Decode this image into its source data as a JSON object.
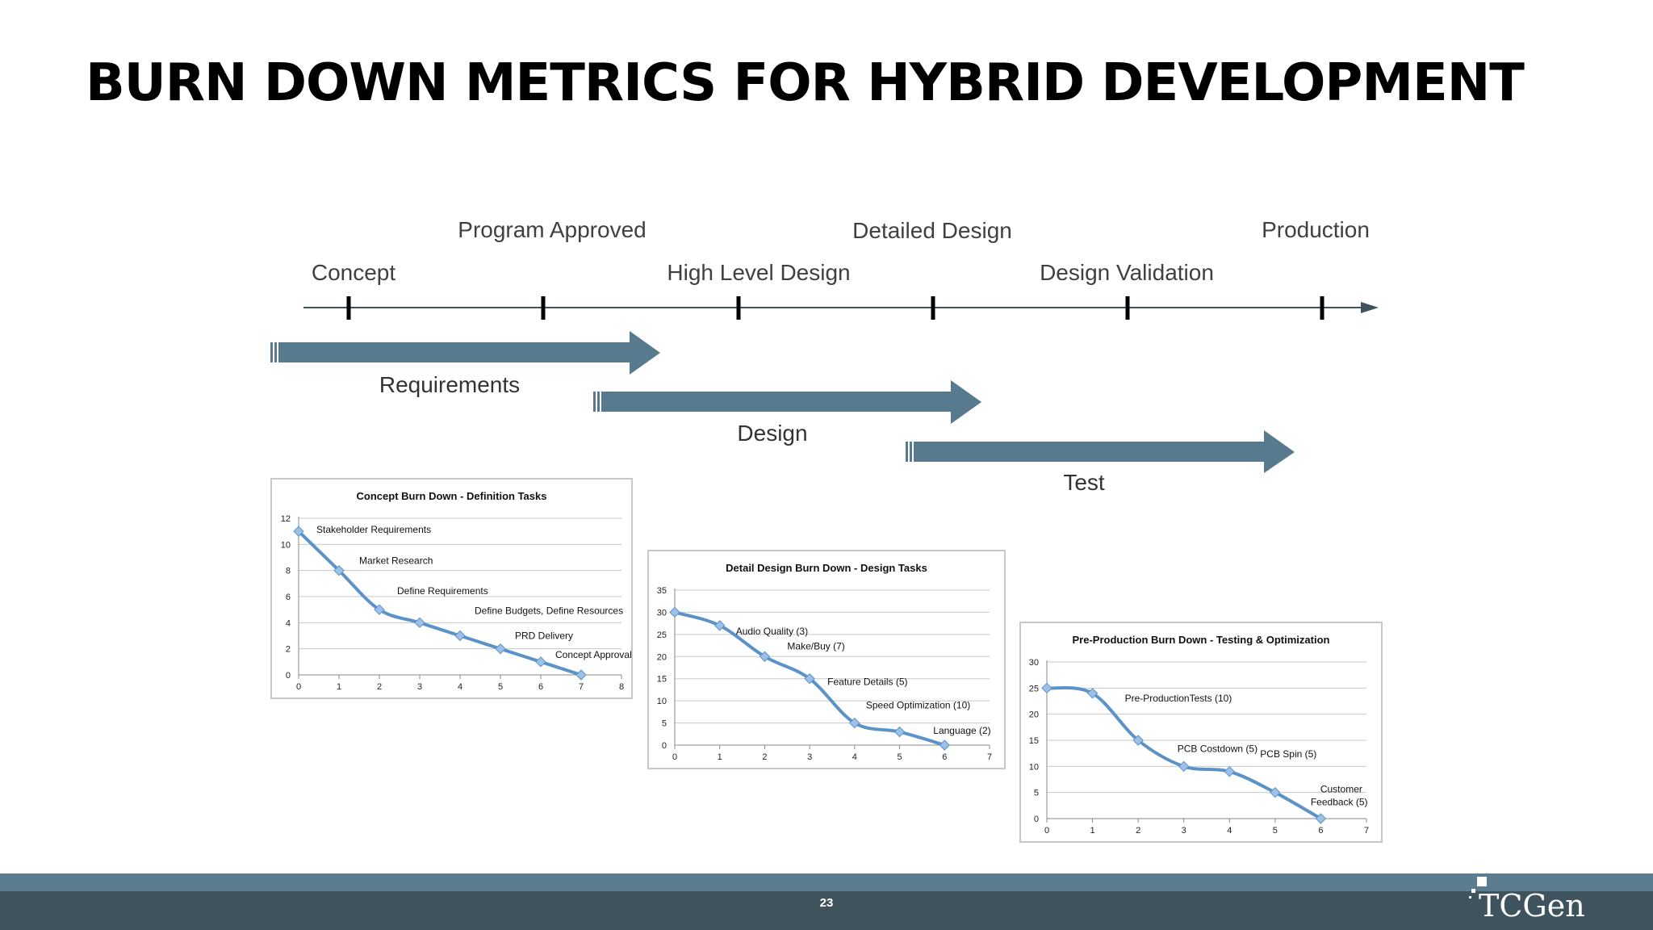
{
  "slide": {
    "title": "BURN DOWN METRICS FOR HYBRID DEVELOPMENT",
    "page_number": "23",
    "logo_text": "TCGen"
  },
  "timeline": {
    "milestones": [
      "Concept",
      "Program Approved",
      "High Level Design",
      "Detailed Design",
      "Design Validation",
      "Production"
    ],
    "phases": [
      "Requirements",
      "Design",
      "Test"
    ]
  },
  "colors": {
    "arrow": "#587a8e",
    "line": "#5b93c9",
    "marker": "#9cc0e6",
    "footer_dark": "#3f535f",
    "footer_light": "#5c7d90"
  },
  "chart_data": [
    {
      "type": "line",
      "title": "Concept Burn Down - Definition Tasks",
      "x": [
        0,
        1,
        2,
        3,
        4,
        5,
        6,
        7
      ],
      "series": [
        {
          "values": [
            11,
            8,
            5,
            4,
            3,
            2,
            1,
            0
          ]
        }
      ],
      "xlim": [
        0,
        8
      ],
      "ylim": [
        0,
        12
      ],
      "xticks": [
        0,
        1,
        2,
        3,
        4,
        5,
        6,
        7,
        8
      ],
      "yticks": [
        0,
        2,
        4,
        6,
        8,
        10,
        12
      ],
      "grid": true,
      "annotations": [
        {
          "text": "Stakeholder Requirements",
          "x": 0,
          "y": 11
        },
        {
          "text": "Market Research",
          "x": 1,
          "y": 8
        },
        {
          "text": "Define Requirements",
          "x": 2,
          "y": 5
        },
        {
          "text": "Define Budgets, Define Resources",
          "x": 3,
          "y": 4
        },
        {
          "text": "PRD Delivery",
          "x": 5,
          "y": 2
        },
        {
          "text": "Concept Approval",
          "x": 6,
          "y": 1
        }
      ]
    },
    {
      "type": "line",
      "title": "Detail Design Burn Down - Design Tasks",
      "x": [
        0,
        1,
        2,
        3,
        4,
        5,
        6
      ],
      "series": [
        {
          "values": [
            30,
            27,
            20,
            15,
            5,
            3,
            0
          ]
        }
      ],
      "xlim": [
        0,
        7
      ],
      "ylim": [
        0,
        35
      ],
      "xticks": [
        0,
        1,
        2,
        3,
        4,
        5,
        6,
        7
      ],
      "yticks": [
        0,
        5,
        10,
        15,
        20,
        25,
        30,
        35
      ],
      "grid": true,
      "annotations": [
        {
          "text": "Audio Quality (3)",
          "x": 1,
          "y": 27
        },
        {
          "text": "Make/Buy (7)",
          "x": 2,
          "y": 20
        },
        {
          "text": "Feature Details (5)",
          "x": 3,
          "y": 15
        },
        {
          "text": "Speed Optimization (10)",
          "x": 4,
          "y": 5
        },
        {
          "text": "Language (2)",
          "x": 6,
          "y": 0
        }
      ]
    },
    {
      "type": "line",
      "title": "Pre-Production Burn Down - Testing & Optimization",
      "x": [
        0,
        1,
        2,
        3,
        4,
        5,
        6
      ],
      "series": [
        {
          "values": [
            25,
            24,
            15,
            10,
            9,
            5,
            0
          ]
        }
      ],
      "xlim": [
        0,
        7
      ],
      "ylim": [
        0,
        30
      ],
      "xticks": [
        0,
        1,
        2,
        3,
        4,
        5,
        6,
        7
      ],
      "yticks": [
        0,
        5,
        10,
        15,
        20,
        25,
        30
      ],
      "grid": true,
      "annotations": [
        {
          "text": "Pre-ProductionTests (10)",
          "x": 1,
          "y": 24
        },
        {
          "text": "PCB Costdown (5)",
          "x": 3,
          "y": 10
        },
        {
          "text": "PCB Spin (5)",
          "x": 4,
          "y": 9
        },
        {
          "text": "Customer",
          "x": 5,
          "y": 5
        },
        {
          "text": "Feedback (5)",
          "x": 5,
          "y": 5
        }
      ]
    }
  ]
}
